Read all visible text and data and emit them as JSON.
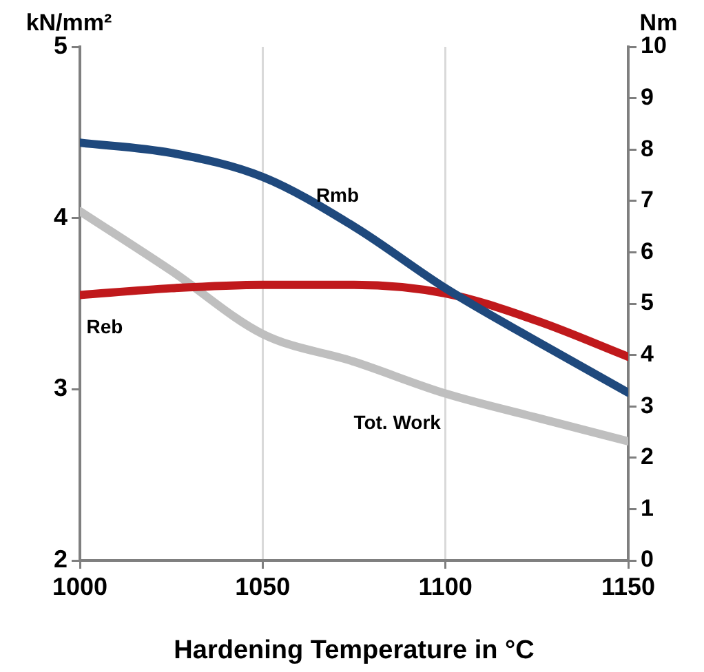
{
  "chart_data": {
    "type": "line",
    "xlabel": "Hardening Temperature in °C",
    "ylabel": "kN/mm²",
    "y2label": "Nm",
    "x": [
      1000,
      1025,
      1050,
      1075,
      1100,
      1125,
      1150
    ],
    "xlim": [
      1000,
      1150
    ],
    "xticks": [
      1000,
      1050,
      1100,
      1150
    ],
    "ylim": [
      2,
      5
    ],
    "yticks": [
      2,
      3,
      4,
      5
    ],
    "y2lim": [
      0,
      10
    ],
    "y2ticks": [
      0,
      1,
      2,
      3,
      4,
      5,
      6,
      7,
      8,
      9,
      10
    ],
    "grid": "x",
    "legend": false,
    "marker": "none",
    "line_style": "solid",
    "series": [
      {
        "name": "Rmb",
        "color": "#1f497d",
        "values": [
          4.44,
          4.38,
          4.24,
          3.95,
          3.59,
          3.28,
          2.98
        ]
      },
      {
        "name": "Reb",
        "color": "#c0191c",
        "values": [
          3.55,
          3.59,
          3.61,
          3.61,
          3.56,
          3.4,
          3.19
        ]
      },
      {
        "name": "Tot. Work",
        "color": "#bfbfbf",
        "axis": "y2",
        "values": [
          6.8,
          5.64,
          4.41,
          3.87,
          3.25,
          2.78,
          2.32
        ]
      }
    ]
  }
}
